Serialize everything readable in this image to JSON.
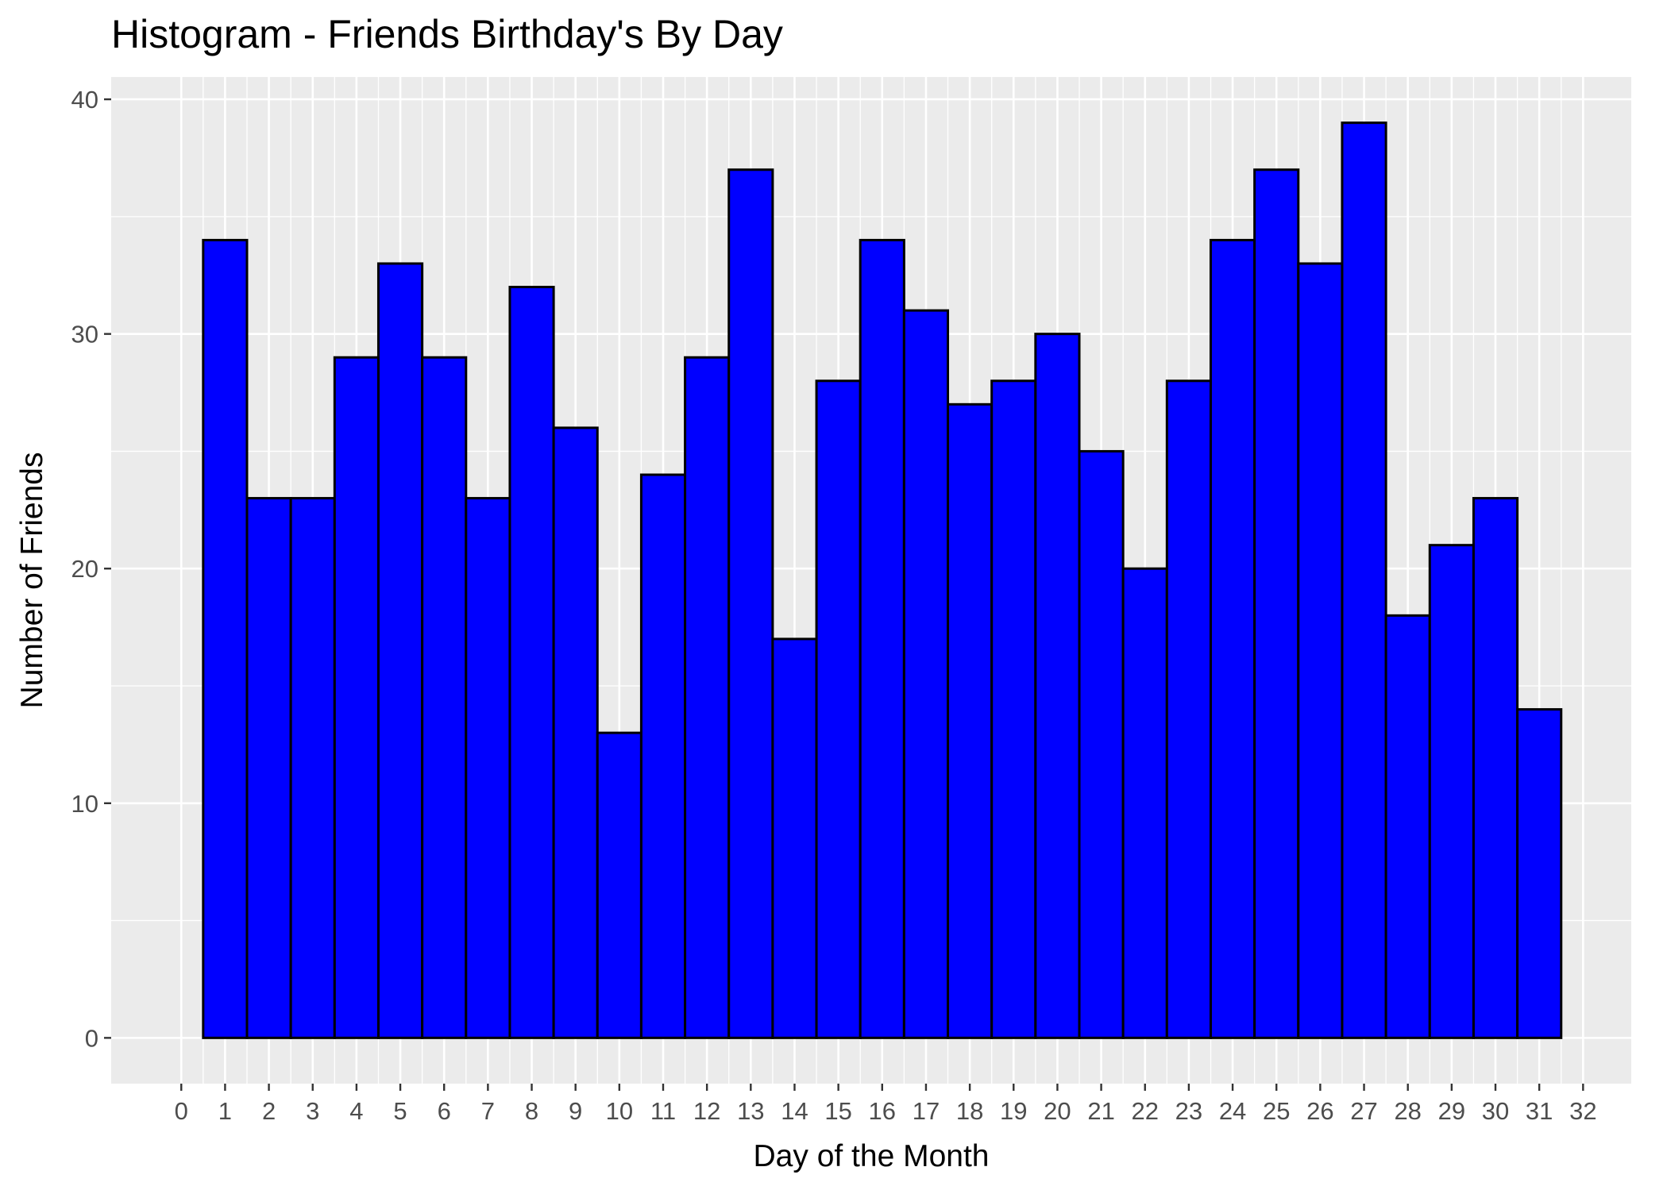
{
  "chart_data": {
    "type": "bar",
    "title": "Histogram - Friends Birthday's By Day",
    "xlabel": "Day of the Month",
    "ylabel": "Number of Friends",
    "x_ticks": [
      "0",
      "1",
      "2",
      "3",
      "4",
      "5",
      "6",
      "7",
      "8",
      "9",
      "10",
      "11",
      "12",
      "13",
      "14",
      "15",
      "16",
      "17",
      "18",
      "19",
      "20",
      "21",
      "22",
      "23",
      "24",
      "25",
      "26",
      "27",
      "28",
      "29",
      "30",
      "31",
      "32"
    ],
    "y_ticks": [
      "0",
      "10",
      "20",
      "30",
      "40"
    ],
    "categories": [
      "1",
      "2",
      "3",
      "4",
      "5",
      "6",
      "7",
      "8",
      "9",
      "10",
      "11",
      "12",
      "13",
      "14",
      "15",
      "16",
      "17",
      "18",
      "19",
      "20",
      "21",
      "22",
      "23",
      "24",
      "25",
      "26",
      "27",
      "28",
      "29",
      "30",
      "31"
    ],
    "values": [
      34,
      23,
      23,
      29,
      33,
      29,
      23,
      32,
      26,
      13,
      24,
      29,
      37,
      17,
      28,
      34,
      31,
      27,
      28,
      30,
      25,
      20,
      28,
      34,
      37,
      33,
      39,
      18,
      21,
      23,
      14
    ],
    "xlim": [
      -1.6,
      33.1
    ],
    "ylim": [
      -1.95,
      40.95
    ],
    "grid": true,
    "legend": "none",
    "colors": {
      "bar_fill": "#0000FF",
      "bar_outline": "#000000",
      "panel_background": "#EBEBEB",
      "grid": "#FFFFFF"
    }
  }
}
